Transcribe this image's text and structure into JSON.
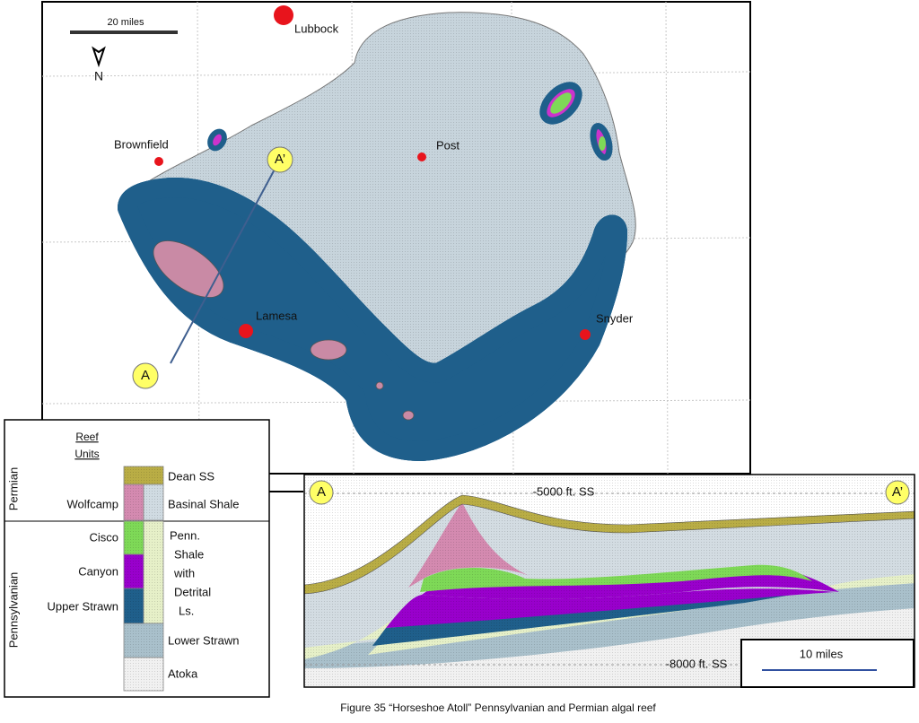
{
  "map": {
    "scale_label": "20 miles",
    "north": "N",
    "places": {
      "lubbock": "Lubbock",
      "brownfield": "Brownfield",
      "post": "Post",
      "lamesa": "Lamesa",
      "snyder": "Snyder"
    },
    "section_ends": {
      "start": "A",
      "end": "A’"
    }
  },
  "legend": {
    "heading": [
      "Reef",
      "Units"
    ],
    "periods": {
      "permian": "Permian",
      "pennsylvanian": "Pennsylvanian"
    },
    "reef_units": {
      "wolfcamp": "Wolfcamp",
      "cisco": "Cisco",
      "canyon": "Canyon",
      "upper_strawn": "Upper Strawn"
    },
    "units": {
      "dean": "Dean SS",
      "basinal": "Basinal Shale",
      "penn_shale": [
        "Penn.",
        "Shale",
        "with",
        "Detrital",
        "Ls."
      ],
      "lower_strawn": "Lower Strawn",
      "atoka": "Atoka"
    }
  },
  "cross_section": {
    "start": "A",
    "end": "A’",
    "top_depth": "-5000 ft. SS",
    "bottom_depth": "-8000 ft. SS",
    "scale_label": "10 miles"
  },
  "caption": "Figure 35   “Horseshoe Atoll” Pennsylvanian and Permian algal reef"
}
